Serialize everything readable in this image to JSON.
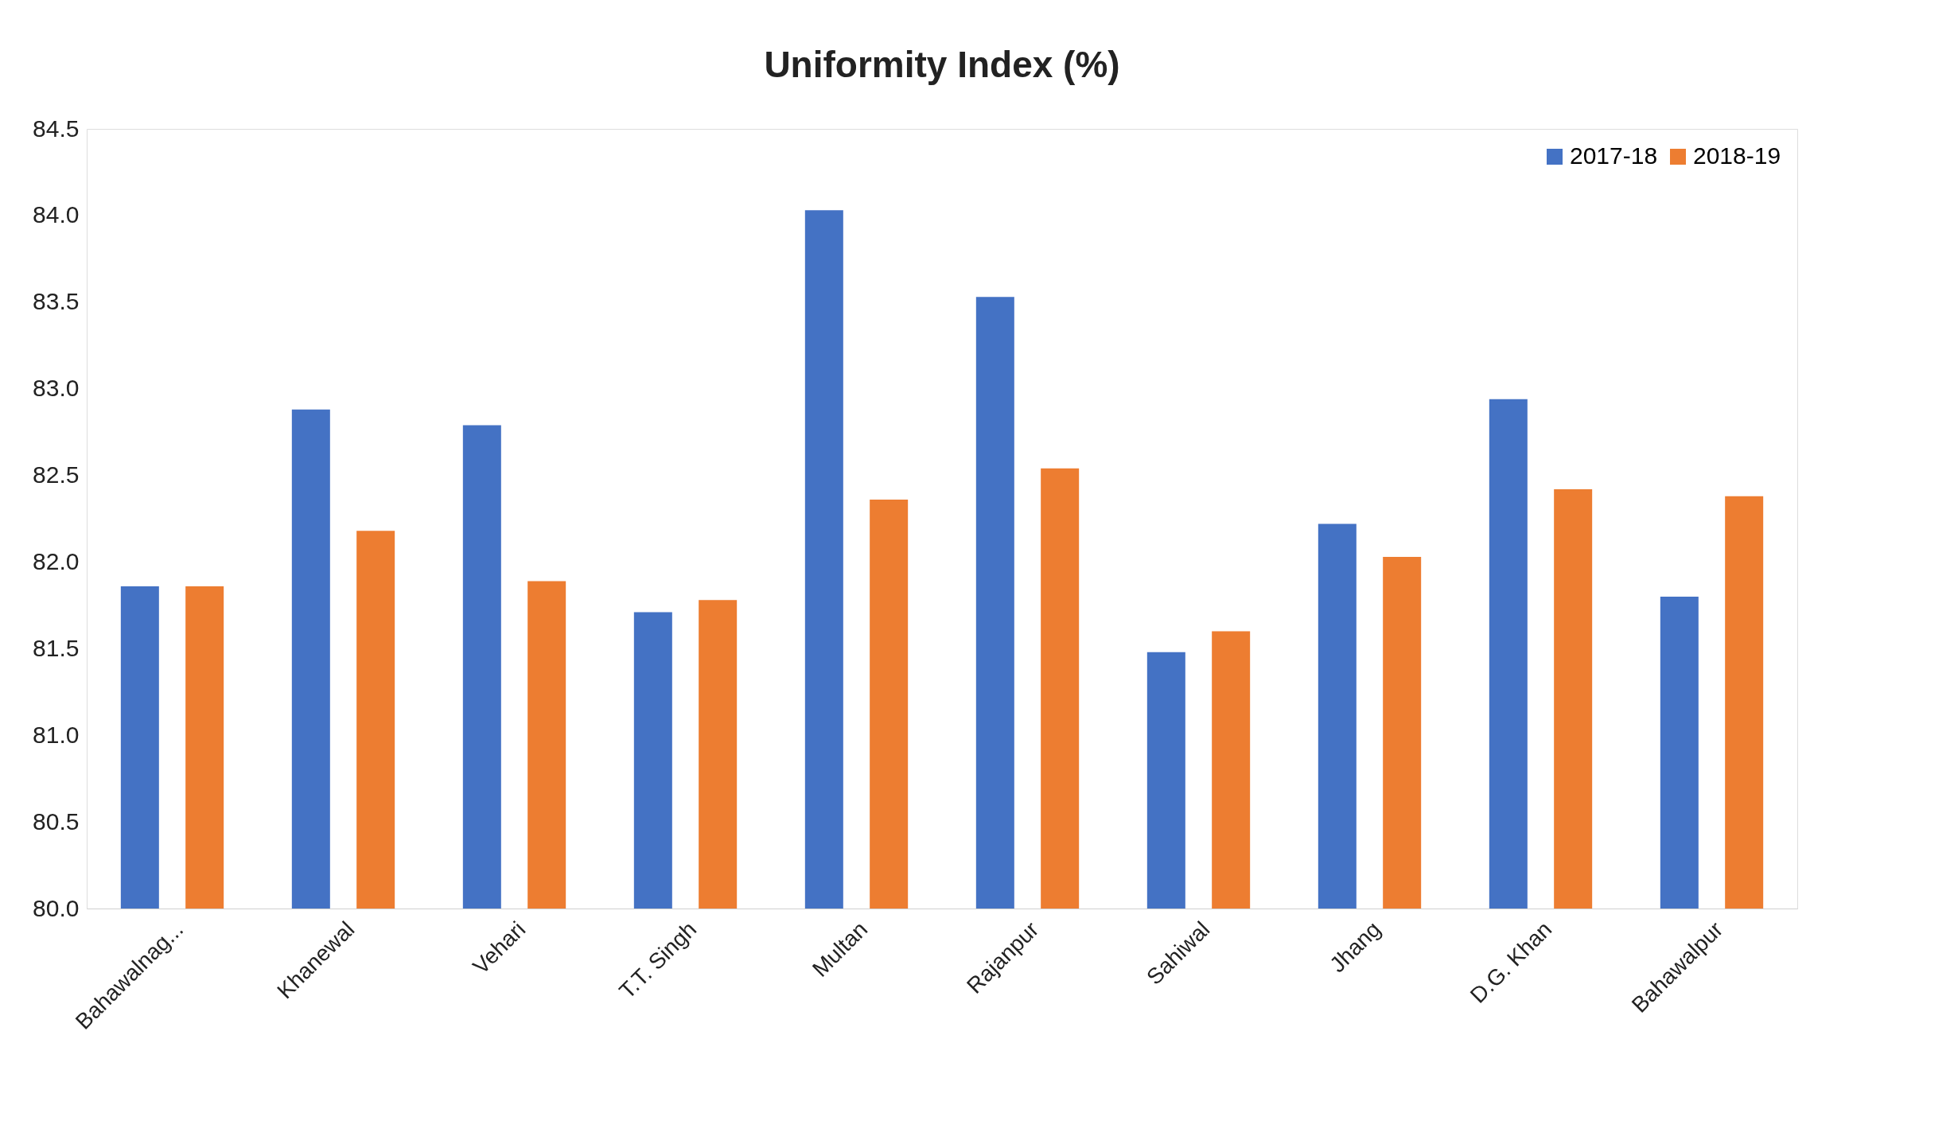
{
  "chart_data": {
    "type": "bar",
    "title": "Uniformity Index (%)",
    "categories": [
      "Bahawalnag...",
      "Khanewal",
      "Vehari",
      "T.T. Singh",
      "Multan",
      "Rajanpur",
      "Sahiwal",
      "Jhang",
      "D.G. Khan",
      "Bahawalpur"
    ],
    "series": [
      {
        "name": "2017-18",
        "color": "#4472c4",
        "values": [
          81.86,
          82.88,
          82.79,
          81.71,
          84.03,
          83.53,
          81.48,
          82.22,
          82.94,
          81.8
        ]
      },
      {
        "name": "2018-19",
        "color": "#ed7d31",
        "values": [
          81.86,
          82.18,
          81.89,
          81.78,
          82.36,
          82.54,
          81.6,
          82.03,
          82.42,
          82.38
        ]
      }
    ],
    "ylim": [
      80,
      84.5
    ],
    "yticks": [
      {
        "value": 80,
        "label": "80.0"
      },
      {
        "value": 80.5,
        "label": "80.5"
      },
      {
        "value": 81,
        "label": "81.0"
      },
      {
        "value": 81.5,
        "label": "81.5"
      },
      {
        "value": 82,
        "label": "82.0"
      },
      {
        "value": 82.5,
        "label": "82.5"
      },
      {
        "value": 83,
        "label": "83.0"
      },
      {
        "value": 83.5,
        "label": "83.5"
      },
      {
        "value": 84,
        "label": "84.0"
      },
      {
        "value": 84.5,
        "label": "84.5"
      }
    ],
    "grid": false,
    "legend": "top right"
  }
}
